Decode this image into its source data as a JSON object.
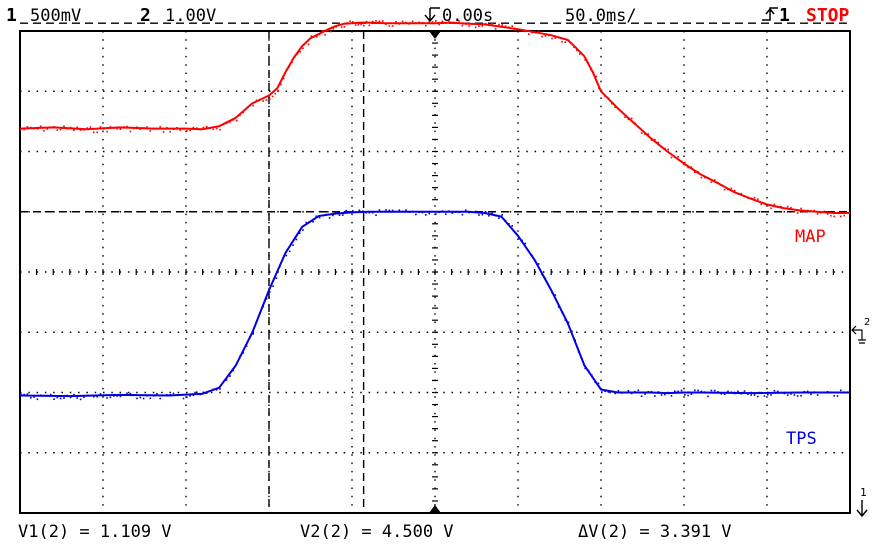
{
  "chart_data": {
    "type": "line",
    "title": "",
    "header": {
      "ch1_num": "1",
      "ch1_scale": "500mV",
      "ch2_num": "2",
      "ch2_scale": "1.00V",
      "time_offset": "0.00s",
      "time_scale": "50.0ms/",
      "trigger": "1",
      "run_state": "STOP"
    },
    "x": {
      "unit": "ms",
      "range": [
        -250,
        250
      ],
      "divisions": 10
    },
    "series": [
      {
        "name": "MAP",
        "color": "#ff0000",
        "channel": 1,
        "x": [
          -250,
          -230,
          -210,
          -190,
          -170,
          -150,
          -140,
          -130,
          -120,
          -110,
          -100,
          -95,
          -90,
          -85,
          -80,
          -75,
          -70,
          -65,
          -60,
          -55,
          -50,
          -45,
          -40,
          -30,
          -20,
          -10,
          0,
          10,
          20,
          30,
          40,
          50,
          60,
          70,
          80,
          85,
          90,
          95,
          100,
          110,
          120,
          130,
          140,
          150,
          160,
          170,
          180,
          190,
          200,
          210,
          220,
          230,
          240,
          250
        ],
        "y_div": [
          2.38,
          2.4,
          2.37,
          2.4,
          2.38,
          2.38,
          2.37,
          2.42,
          2.56,
          2.8,
          2.93,
          3.05,
          3.32,
          3.56,
          3.75,
          3.88,
          3.95,
          4.02,
          4.08,
          4.12,
          4.13,
          4.14,
          4.14,
          4.13,
          4.13,
          4.13,
          4.13,
          4.14,
          4.12,
          4.11,
          4.07,
          4.03,
          3.98,
          3.93,
          3.85,
          3.72,
          3.58,
          3.32,
          3.0,
          2.72,
          2.47,
          2.22,
          2.0,
          1.8,
          1.62,
          1.48,
          1.33,
          1.22,
          1.12,
          1.06,
          1.02,
          1.0,
          0.98,
          0.98
        ]
      },
      {
        "name": "TPS",
        "color": "#0000e0",
        "channel": 2,
        "x": [
          -250,
          -220,
          -190,
          -160,
          -140,
          -130,
          -120,
          -110,
          -100,
          -90,
          -80,
          -70,
          -60,
          -50,
          -40,
          -30,
          -20,
          -10,
          0,
          10,
          20,
          30,
          40,
          50,
          60,
          70,
          80,
          90,
          100,
          110,
          120,
          130,
          140,
          150,
          160,
          190,
          220,
          250
        ],
        "y_div": [
          -2.05,
          -2.06,
          -2.04,
          -2.05,
          -2.02,
          -1.92,
          -1.55,
          -1.0,
          -0.3,
          0.32,
          0.75,
          0.93,
          0.97,
          0.99,
          1.0,
          1.0,
          1.0,
          1.0,
          1.0,
          1.0,
          1.0,
          0.98,
          0.92,
          0.6,
          0.2,
          -0.3,
          -0.85,
          -1.55,
          -1.95,
          -2.0,
          -2.0,
          -2.0,
          -2.01,
          -2.0,
          -2.0,
          -2.01,
          -2.0,
          -2.0
        ]
      }
    ],
    "labels": {
      "map": "MAP",
      "tps": "TPS"
    },
    "cursors": {
      "t1_ms": -100,
      "t2_ms": -43,
      "v1_div": 1.0,
      "v2_div": 4.13
    },
    "ch2_ground_marker": "2",
    "ch1_ground_marker": "1",
    "readouts": {
      "v1": "V1(2) = 1.109 V",
      "v2": "V2(2) = 4.500 V",
      "dv": "ΔV(2) = 3.391 V"
    }
  }
}
